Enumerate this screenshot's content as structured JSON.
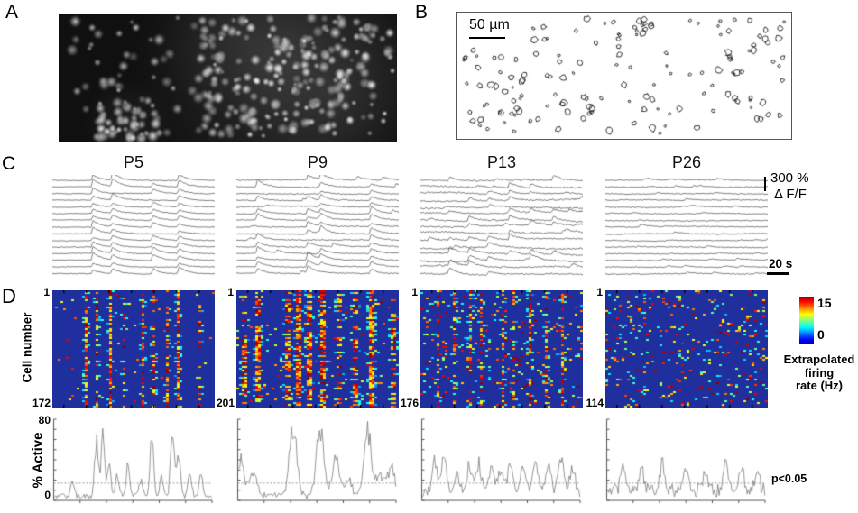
{
  "panels": {
    "a_label": "A",
    "b_label": "B",
    "c_label": "C",
    "d_label": "D"
  },
  "panel_b": {
    "scale_label": "50 µm"
  },
  "panel_c": {
    "amp_label": "300 %",
    "df_label": "Δ F/F",
    "time_label": "20 s"
  },
  "panel_d": {
    "y_axis_label": "Cell number",
    "colorbar_max": "15",
    "colorbar_min": "0",
    "colorbar_caption": [
      "Extrapolated",
      "firing",
      "rate (Hz)"
    ],
    "active_label": "% Active",
    "active_max": "80",
    "active_min": "0",
    "significance": "p<0.05",
    "threshold_pct": 17
  },
  "ages": [
    {
      "title": "P5",
      "first_cell": "1",
      "count": "172",
      "seed": 101,
      "events": [
        0.25,
        0.37,
        0.62,
        0.78
      ],
      "sync": 0.92,
      "amp": 6.5,
      "noise": 0.5,
      "wander": 0.35,
      "extra": 0.15,
      "heat_cols": [
        [
          0.21,
          0.7
        ],
        [
          0.27,
          0.45
        ],
        [
          0.35,
          0.8
        ],
        [
          0.44,
          0.3
        ],
        [
          0.55,
          0.5
        ],
        [
          0.62,
          0.55
        ],
        [
          0.7,
          0.4
        ],
        [
          0.78,
          0.75
        ],
        [
          0.9,
          0.3
        ]
      ],
      "speckle": 0.015,
      "streak_w": 1,
      "peaks": [
        [
          0.12,
          16
        ],
        [
          0.27,
          55
        ],
        [
          0.31,
          57
        ],
        [
          0.35,
          30
        ],
        [
          0.4,
          22
        ],
        [
          0.47,
          30
        ],
        [
          0.55,
          16
        ],
        [
          0.62,
          62
        ],
        [
          0.68,
          18
        ],
        [
          0.75,
          70
        ],
        [
          0.79,
          42
        ],
        [
          0.86,
          25
        ],
        [
          0.93,
          24
        ]
      ],
      "base": 4,
      "pw": 2
    },
    {
      "title": "P9",
      "first_cell": "1",
      "count": "201",
      "seed": 202,
      "events": [
        0.13,
        0.44,
        0.52,
        0.83
      ],
      "sync": 0.6,
      "amp": 6,
      "noise": 0.6,
      "wander": 0.5,
      "extra": 0.4,
      "heat_cols": [
        [
          0.04,
          0.35
        ],
        [
          0.13,
          0.55
        ],
        [
          0.3,
          0.45
        ],
        [
          0.38,
          0.75
        ],
        [
          0.44,
          0.85
        ],
        [
          0.52,
          0.55
        ],
        [
          0.63,
          0.35
        ],
        [
          0.72,
          0.45
        ],
        [
          0.83,
          0.8
        ],
        [
          0.95,
          0.35
        ]
      ],
      "speckle": 0.04,
      "streak_w": 2,
      "peaks": [
        [
          0.02,
          35
        ],
        [
          0.1,
          20
        ],
        [
          0.35,
          68
        ],
        [
          0.52,
          64
        ],
        [
          0.62,
          38
        ],
        [
          0.7,
          14
        ],
        [
          0.82,
          62
        ],
        [
          0.9,
          22
        ],
        [
          0.97,
          26
        ]
      ],
      "base": 5,
      "pw": 4
    },
    {
      "title": "P13",
      "first_cell": "1",
      "count": "176",
      "seed": 303,
      "events": [
        0.18,
        0.3,
        0.42,
        0.55,
        0.68,
        0.82
      ],
      "sync": 0.45,
      "amp": 5,
      "noise": 0.85,
      "wander": 1.6,
      "extra": 0.6,
      "heat_cols": [
        [
          0.1,
          0.35
        ],
        [
          0.2,
          0.4
        ],
        [
          0.3,
          0.45
        ],
        [
          0.38,
          0.3
        ],
        [
          0.5,
          0.4
        ],
        [
          0.58,
          0.35
        ],
        [
          0.68,
          0.45
        ],
        [
          0.78,
          0.4
        ],
        [
          0.88,
          0.45
        ]
      ],
      "speckle": 0.07,
      "streak_w": 1,
      "peaks": [
        [
          0.08,
          28
        ],
        [
          0.14,
          34
        ],
        [
          0.22,
          18
        ],
        [
          0.3,
          26
        ],
        [
          0.36,
          30
        ],
        [
          0.44,
          26
        ],
        [
          0.5,
          24
        ],
        [
          0.56,
          30
        ],
        [
          0.64,
          24
        ],
        [
          0.72,
          34
        ],
        [
          0.8,
          28
        ],
        [
          0.88,
          38
        ],
        [
          0.95,
          24
        ]
      ],
      "base": 8,
      "pw": 3
    },
    {
      "title": "P26",
      "first_cell": "1",
      "count": "114",
      "seed": 404,
      "events": [],
      "sync": 0,
      "amp": 3,
      "noise": 0.6,
      "wander": 0.45,
      "extra": 0.9,
      "heat_cols": [],
      "speckle": 0.085,
      "streak_w": 1,
      "peaks": [
        [
          0.1,
          24
        ],
        [
          0.22,
          20
        ],
        [
          0.35,
          26
        ],
        [
          0.5,
          22
        ],
        [
          0.62,
          20
        ],
        [
          0.75,
          27
        ],
        [
          0.85,
          24
        ],
        [
          0.95,
          22
        ]
      ],
      "base": 11,
      "pw": 2.5
    }
  ],
  "colors": {
    "heat_bg": "#1f2f9e",
    "trace": "#3c3c3c",
    "active_line": "#787878",
    "threshold": "#9a9a9a",
    "axis": "#555555"
  },
  "render": {
    "panel_a": {
      "seed": 7,
      "dots": 330
    },
    "panel_b": {
      "seed": 23,
      "cells": 155
    }
  }
}
